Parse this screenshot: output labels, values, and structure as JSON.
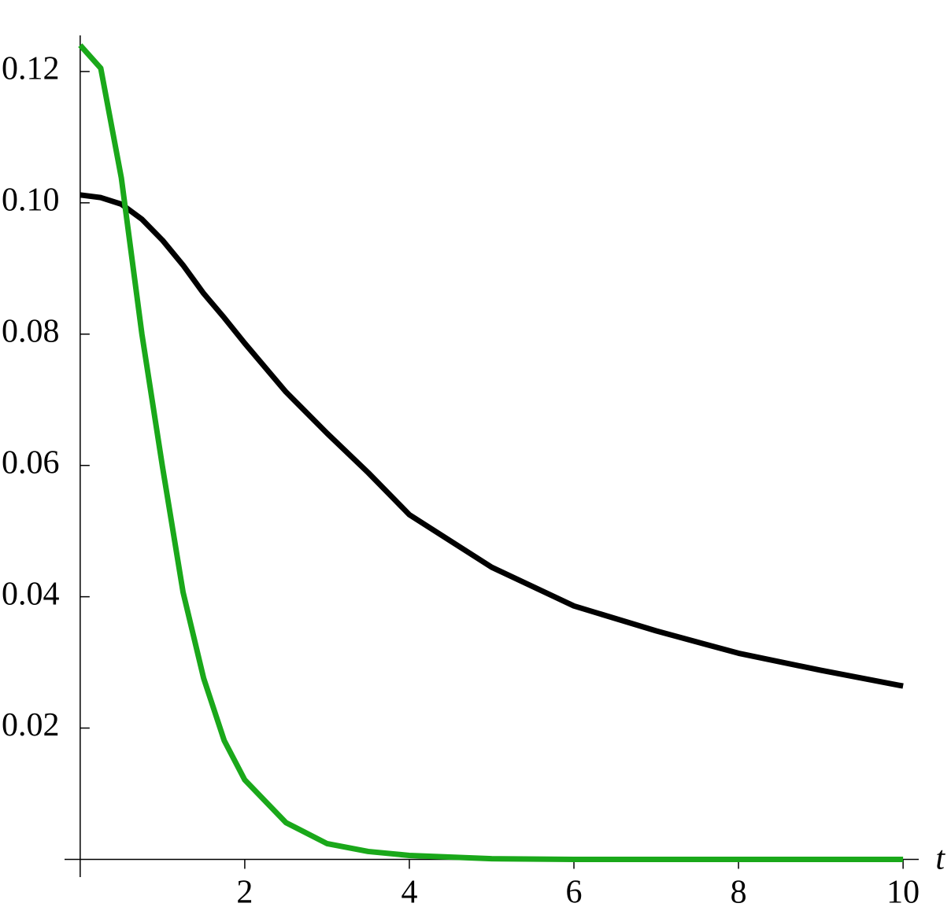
{
  "chart_data": {
    "type": "line",
    "x_label": "t",
    "x": [
      0,
      0.25,
      0.5,
      0.75,
      1,
      1.25,
      1.5,
      1.75,
      2,
      2.5,
      3,
      3.5,
      4,
      5,
      6,
      7,
      8,
      9,
      10
    ],
    "series": [
      {
        "color": "#000000",
        "values": [
          0.1012,
          0.1008,
          0.0998,
          0.0975,
          0.0943,
          0.0905,
          0.0862,
          0.0825,
          0.0786,
          0.0712,
          0.0649,
          0.0589,
          0.0525,
          0.0445,
          0.0386,
          0.0348,
          0.0314,
          0.0288,
          0.0264
        ]
      },
      {
        "color": "#1aa81a",
        "values": [
          0.124,
          0.1205,
          0.1038,
          0.08,
          0.0598,
          0.0407,
          0.0276,
          0.0181,
          0.0121,
          0.0056,
          0.0024,
          0.0012,
          0.0006,
          0.0001,
          0,
          0,
          0,
          0,
          0
        ]
      }
    ],
    "xlim": [
      -0.19,
      10.19
    ],
    "ylim": [
      -0.0027,
      0.1255
    ],
    "xticks": [
      2,
      4,
      6,
      8,
      10
    ],
    "yticks": [
      0.02,
      0.04,
      0.06,
      0.08,
      {
        "value": 0.1,
        "label": "0.10"
      },
      0.12
    ]
  }
}
